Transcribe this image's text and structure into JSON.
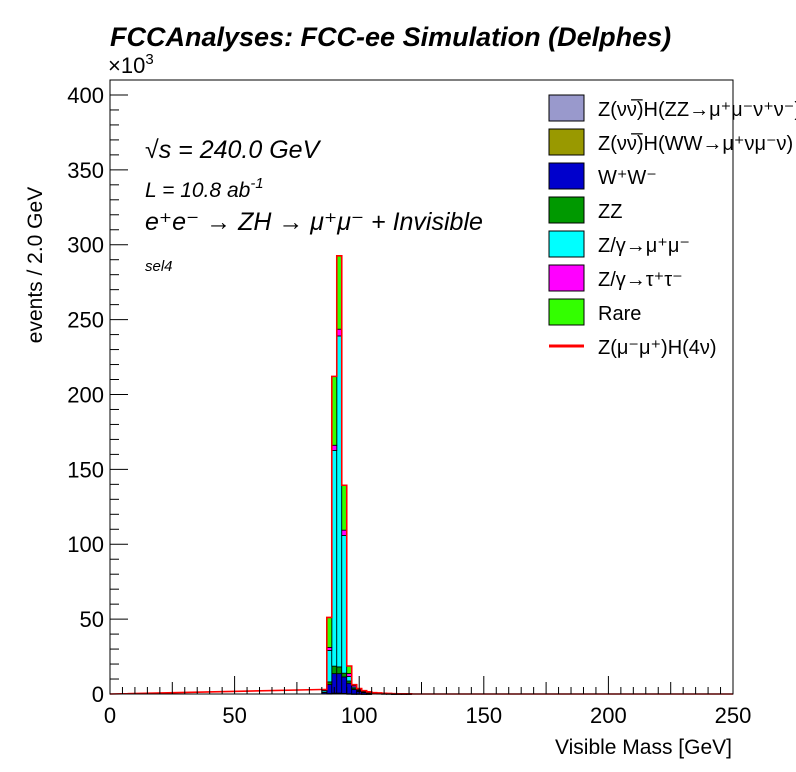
{
  "chart_data": {
    "type": "bar",
    "stacked": true,
    "title": "FCCAnalyses: FCC-ee Simulation (Delphes)",
    "xlabel": "Visible Mass [GeV]",
    "ylabel": "events / 2.0 GeV",
    "y_multiplier": "×10",
    "y_multiplier_exp": "3",
    "xlim": [
      0,
      250
    ],
    "ylim": [
      0,
      410
    ],
    "bin_width": 2.0,
    "x_ticks": [
      0,
      50,
      100,
      150,
      200,
      250
    ],
    "y_ticks": [
      0,
      50,
      100,
      150,
      200,
      250,
      300,
      350,
      400
    ],
    "x": [
      86,
      88,
      90,
      92,
      94,
      96,
      98,
      100,
      102,
      104,
      106,
      108,
      110,
      112,
      114,
      116,
      118,
      120
    ],
    "series": [
      {
        "name": "Z(νν̅)H(ZZ→μ⁺μ⁻ν⁺ν⁻)",
        "color": "#9999cc",
        "values": [
          0,
          0,
          0,
          0,
          0,
          0,
          0,
          0,
          0,
          0,
          0,
          0,
          0,
          0,
          0,
          0,
          0,
          0
        ]
      },
      {
        "name": "Z(νν̅)H(WW→μ⁺νμ⁻ν)",
        "color": "#999900",
        "values": [
          0,
          0.3,
          0.6,
          0.6,
          0.4,
          0.2,
          0.1,
          0.1,
          0.05,
          0.05,
          0,
          0,
          0,
          0,
          0,
          0,
          0,
          0
        ]
      },
      {
        "name": "W⁺W⁻",
        "color": "#0000cc",
        "values": [
          1,
          6,
          13,
          13,
          11,
          7,
          3,
          1.6,
          1,
          0.6,
          0.4,
          0.3,
          0.2,
          0.2,
          0.1,
          0.1,
          0.1,
          0.1
        ]
      },
      {
        "name": "ZZ",
        "color": "#009900",
        "values": [
          0.3,
          1.8,
          5,
          4.5,
          2.5,
          1.5,
          0.8,
          0.4,
          0.3,
          0.2,
          0.1,
          0.1,
          0.1,
          0.05,
          0.05,
          0,
          0,
          0
        ]
      },
      {
        "name": "Z/γ→μ⁺μ⁻",
        "color": "#00ffff",
        "values": [
          1,
          21,
          144,
          221,
          92,
          3,
          0.8,
          0.6,
          0.4,
          0.3,
          0.2,
          0.2,
          0.1,
          0.1,
          0.1,
          0.05,
          0.05,
          0.05
        ]
      },
      {
        "name": "Z/γ→τ⁺τ⁻",
        "color": "#ff00ff",
        "values": [
          0.5,
          2,
          3.5,
          4.5,
          3.5,
          2,
          1,
          0.6,
          0.3,
          0.2,
          0.1,
          0.1,
          0.05,
          0.05,
          0,
          0,
          0,
          0
        ]
      },
      {
        "name": "Rare",
        "color": "#33ff00",
        "values": [
          0.2,
          20,
          46,
          49,
          30,
          5,
          0.5,
          0.3,
          0.2,
          0.1,
          0.1,
          0.05,
          0.05,
          0,
          0,
          0,
          0,
          0
        ]
      },
      {
        "name": "Z(μ⁻μ⁺)H(4ν)",
        "color": "#ff0000",
        "type": "line",
        "values": [
          0,
          0,
          0,
          0,
          0,
          0,
          0,
          0,
          0,
          0,
          0,
          0,
          0,
          0,
          0,
          0,
          0,
          0
        ]
      }
    ],
    "annotations": {
      "sqrt_s": "√s = 240.0 GeV",
      "lumi": "L = 10.8 ab",
      "lumi_exp": "-1",
      "process": "e⁺e⁻ → ZH → μ⁺μ⁻ + Invisible",
      "selection": "sel4"
    },
    "legend_position": "top-right",
    "grid": false
  }
}
